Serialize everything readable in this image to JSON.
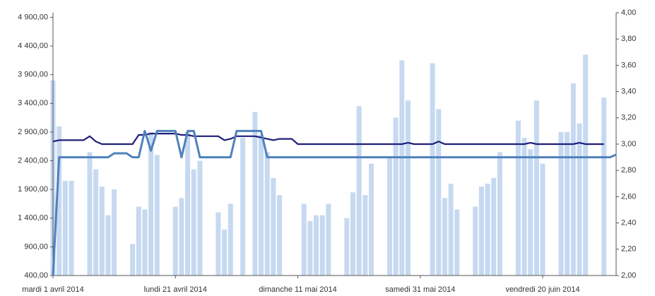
{
  "chart_data": {
    "type": "bar-line",
    "categories": [
      "mardi 1 avril 2014",
      null,
      null,
      null,
      null,
      null,
      null,
      null,
      null,
      null,
      null,
      null,
      null,
      null,
      null,
      null,
      null,
      null,
      null,
      null,
      "lundi 21 avril 2014",
      null,
      null,
      null,
      null,
      null,
      null,
      null,
      null,
      null,
      null,
      null,
      null,
      null,
      null,
      null,
      null,
      null,
      null,
      null,
      "dimanche 11 mai 2014",
      null,
      null,
      null,
      null,
      null,
      null,
      null,
      null,
      null,
      null,
      null,
      null,
      null,
      null,
      null,
      null,
      null,
      null,
      null,
      "samedi 31 mai 2014",
      null,
      null,
      null,
      null,
      null,
      null,
      null,
      null,
      null,
      null,
      null,
      null,
      null,
      null,
      null,
      null,
      null,
      null,
      null,
      "vendredi 20 juin 2014",
      null,
      null,
      null,
      null,
      null,
      null,
      null,
      null,
      null,
      null,
      null,
      null
    ],
    "series": [
      {
        "type": "bar",
        "color": "#c6d9f1",
        "values": [
          3800,
          3000,
          2050,
          2050,
          null,
          null,
          2550,
          2250,
          1950,
          1450,
          1900,
          null,
          null,
          950,
          1600,
          1550,
          2900,
          2500,
          null,
          null,
          1600,
          1750,
          2900,
          2250,
          2400,
          null,
          null,
          1500,
          1200,
          1650,
          null,
          2800,
          null,
          3250,
          2850,
          2550,
          2100,
          1800,
          null,
          null,
          null,
          1650,
          1350,
          1450,
          1450,
          1650,
          null,
          null,
          1400,
          1850,
          3350,
          1800,
          2350,
          null,
          null,
          2450,
          3150,
          4150,
          3450,
          null,
          null,
          null,
          4100,
          3300,
          1750,
          2000,
          1550,
          null,
          null,
          1600,
          1950,
          2000,
          2100,
          2550,
          null,
          null,
          3100,
          2800,
          2600,
          3450,
          2350,
          null,
          null,
          2900,
          2900,
          3750,
          3050,
          4250,
          null,
          null,
          3500,
          null,
          null
        ]
      },
      {
        "type": "line",
        "axis": "y2",
        "color": "#1f1f7a",
        "values": [
          3.02,
          3.03,
          3.03,
          3.03,
          3.03,
          3.03,
          3.06,
          3.02,
          3.0,
          3.0,
          3.0,
          3.0,
          3.0,
          3.0,
          3.07,
          3.07,
          3.08,
          3.08,
          3.08,
          3.08,
          3.08,
          3.07,
          3.07,
          3.06,
          3.06,
          3.06,
          3.06,
          3.06,
          3.03,
          3.04,
          3.06,
          3.06,
          3.06,
          3.06,
          3.05,
          3.04,
          3.03,
          3.04,
          3.04,
          3.04,
          3.0,
          3.0,
          3.0,
          3.0,
          3.0,
          3.0,
          3.0,
          3.0,
          3.0,
          3.0,
          3.0,
          3.0,
          3.0,
          3.0,
          3.0,
          3.0,
          3.0,
          3.0,
          3.01,
          3.0,
          3.0,
          3.0,
          3.0,
          3.02,
          3.0,
          3.0,
          3.0,
          3.0,
          3.0,
          3.0,
          3.0,
          3.0,
          3.0,
          3.0,
          3.0,
          3.0,
          3.0,
          3.0,
          3.01,
          3.0,
          3.0,
          3.0,
          3.0,
          3.0,
          3.0,
          3.0,
          3.01,
          3.0,
          3.0,
          3.0,
          3.0,
          null,
          null
        ]
      },
      {
        "type": "line",
        "axis": "y2",
        "color": "#4f81bd",
        "values": [
          2.0,
          2.9,
          2.9,
          2.9,
          2.9,
          2.9,
          2.9,
          2.9,
          2.9,
          2.9,
          2.93,
          2.93,
          2.93,
          2.9,
          2.9,
          3.1,
          2.95,
          3.1,
          3.1,
          3.1,
          3.1,
          2.9,
          3.1,
          3.1,
          2.9,
          2.9,
          2.9,
          2.9,
          2.9,
          2.9,
          3.1,
          3.1,
          3.1,
          3.1,
          3.1,
          2.9,
          2.9,
          2.9,
          2.9,
          2.9,
          2.9,
          2.9,
          2.9,
          2.9,
          2.9,
          2.9,
          2.9,
          2.9,
          2.9,
          2.9,
          2.9,
          2.9,
          2.9,
          2.9,
          2.9,
          2.9,
          2.9,
          2.9,
          2.9,
          2.9,
          2.9,
          2.9,
          2.9,
          2.9,
          2.9,
          2.9,
          2.9,
          2.9,
          2.9,
          2.9,
          2.9,
          2.9,
          2.9,
          2.9,
          2.9,
          2.9,
          2.9,
          2.9,
          2.9,
          2.9,
          2.9,
          2.9,
          2.9,
          2.9,
          2.9,
          2.9,
          2.9,
          2.9,
          2.9,
          2.9,
          2.9,
          2.9,
          2.92
        ]
      }
    ],
    "ylim": [
      400,
      4980
    ],
    "yticks": [
      {
        "value": 400,
        "label": "400,00"
      },
      {
        "value": 900,
        "label": "900,00"
      },
      {
        "value": 1400,
        "label": "1 400,00"
      },
      {
        "value": 1900,
        "label": "1 900,00"
      },
      {
        "value": 2400,
        "label": "2 400,00"
      },
      {
        "value": 2900,
        "label": "2 900,00"
      },
      {
        "value": 3400,
        "label": "3 400,00"
      },
      {
        "value": 3900,
        "label": "3 900,00"
      },
      {
        "value": 4400,
        "label": "4 400,00"
      },
      {
        "value": 4900,
        "label": "4 900,00"
      }
    ],
    "y2lim": [
      2,
      4
    ],
    "y2ticks": [
      {
        "value": 2,
        "label": "2,00"
      },
      {
        "value": 2.2,
        "label": "2,20"
      },
      {
        "value": 2.4,
        "label": "2,40"
      },
      {
        "value": 2.6,
        "label": "2,60"
      },
      {
        "value": 2.8,
        "label": "2,80"
      },
      {
        "value": 3,
        "label": "3,00"
      },
      {
        "value": 3.2,
        "label": "3,20"
      },
      {
        "value": 3.4,
        "label": "3,40"
      },
      {
        "value": 3.6,
        "label": "3,60"
      },
      {
        "value": 3.8,
        "label": "3,80"
      },
      {
        "value": 4,
        "label": "4,00"
      }
    ]
  }
}
